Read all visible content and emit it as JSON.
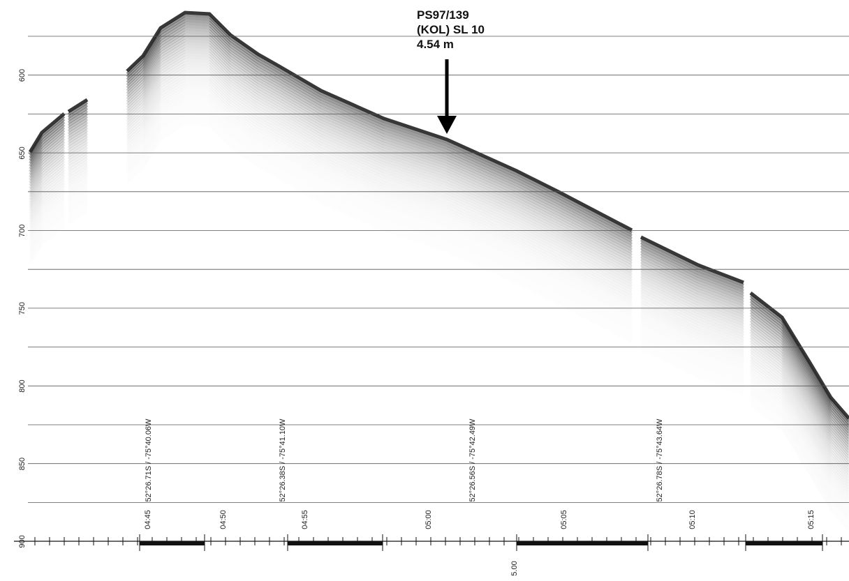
{
  "annotation": {
    "lines": [
      "PS97/139",
      "(KOL) SL 10",
      "4.54 m"
    ]
  },
  "depth_axis": {
    "labels": [
      "600",
      "650",
      "700",
      "750",
      "800",
      "850",
      "900"
    ]
  },
  "positions": [
    "52°26.71S / -75°40.06W",
    "52°26.38S / -75°41.10W",
    "52°26.56S / -75°42.49W",
    "52°26.78S / -75°43.64W"
  ],
  "time_axis": {
    "labels": [
      "04:45",
      "04:50",
      "04:55",
      "05:00",
      "05:05",
      "05:10",
      "05:15"
    ],
    "footer": "5.00"
  }
}
